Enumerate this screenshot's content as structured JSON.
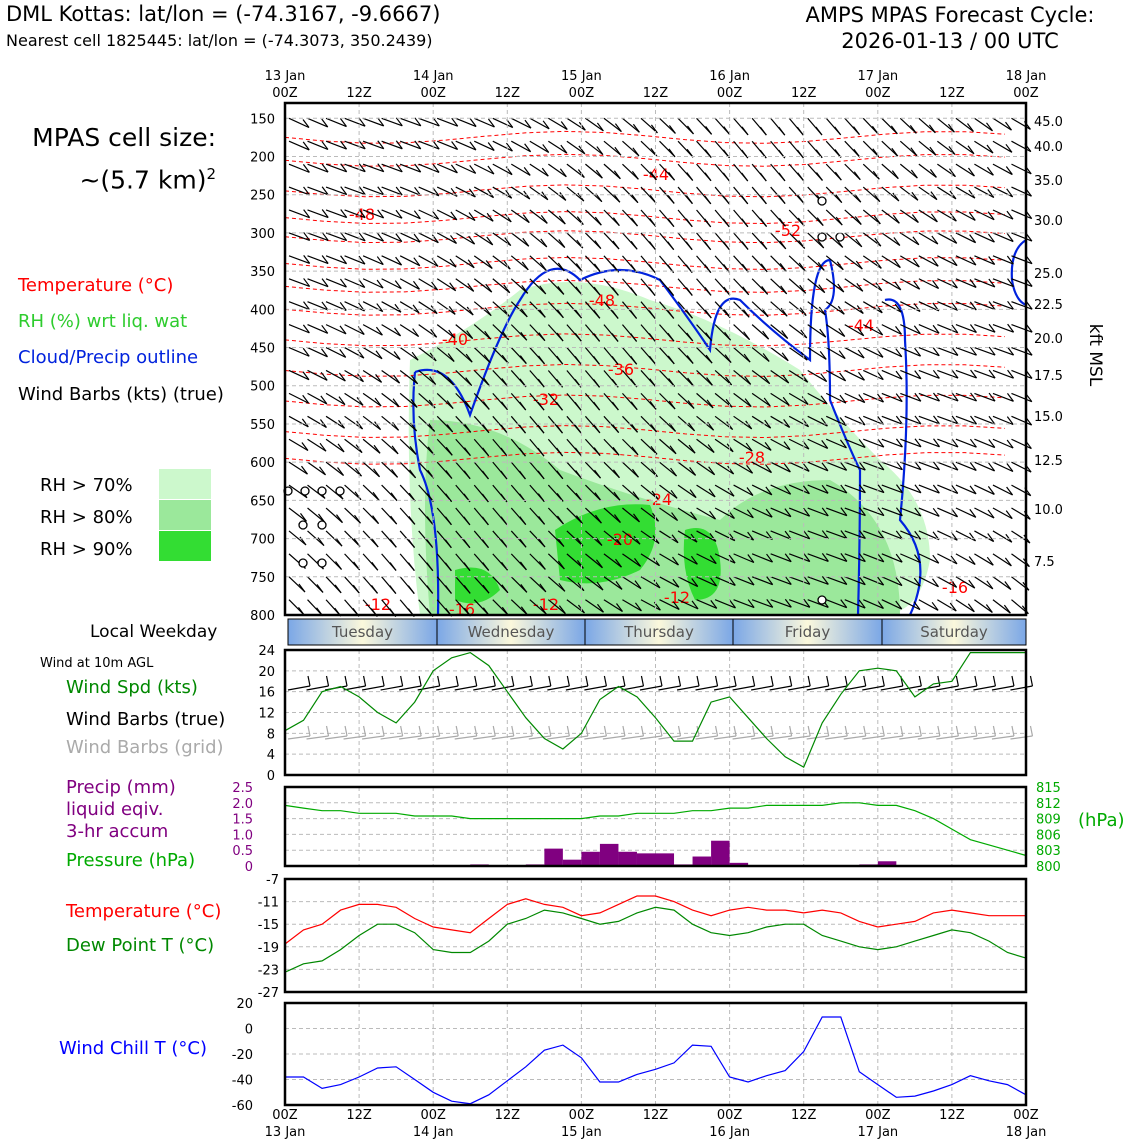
{
  "header": {
    "title_left": "DML Kottas: lat/lon = (-74.3167, -9.6667)",
    "subtitle_left": "Nearest cell 1825445: lat/lon = (-74.3073, 350.2439)",
    "title_right_line1": "AMPS MPAS Forecast Cycle:",
    "title_right_line2": "2026-01-13 / 00 UTC",
    "cell_size_label": "MPAS cell size:",
    "cell_size_value": "~(5.7 km)",
    "cell_size_exp": "2"
  },
  "legend_upper": {
    "temperature": "Temperature (°C)",
    "rh": "RH (%) wrt liq. wat",
    "cloud": "Cloud/Precip outline",
    "wind": "Wind Barbs (kts) (true)",
    "rh70": "RH > 70%",
    "rh80": "RH > 80%",
    "rh90": "RH > 90%"
  },
  "colors": {
    "temperature": "#ff0000",
    "rh_label": "#2ecc2e",
    "cloud": "#0022dd",
    "rh70": "#ccf8cc",
    "rh80": "#9be89b",
    "rh90": "#33dd33",
    "wind_speed": "#008800",
    "wind_grid": "#aaaaaa",
    "precip": "#800080",
    "pressure": "#00aa00",
    "dewpoint": "#008800",
    "wind_chill": "#0000ff"
  },
  "time_axis": {
    "top_ticks": [
      {
        "line1": "13 Jan",
        "line2": "00Z"
      },
      {
        "line1": "",
        "line2": "12Z"
      },
      {
        "line1": "14 Jan",
        "line2": "00Z"
      },
      {
        "line1": "",
        "line2": "12Z"
      },
      {
        "line1": "15 Jan",
        "line2": "00Z"
      },
      {
        "line1": "",
        "line2": "12Z"
      },
      {
        "line1": "16 Jan",
        "line2": "00Z"
      },
      {
        "line1": "",
        "line2": "12Z"
      },
      {
        "line1": "17 Jan",
        "line2": "00Z"
      },
      {
        "line1": "",
        "line2": "12Z"
      },
      {
        "line1": "18 Jan",
        "line2": "00Z"
      }
    ],
    "bottom_ticks": [
      {
        "line1": "00Z",
        "line2": "13 Jan"
      },
      {
        "line1": "12Z",
        "line2": ""
      },
      {
        "line1": "00Z",
        "line2": "14 Jan"
      },
      {
        "line1": "12Z",
        "line2": ""
      },
      {
        "line1": "00Z",
        "line2": "15 Jan"
      },
      {
        "line1": "12Z",
        "line2": ""
      },
      {
        "line1": "00Z",
        "line2": "16 Jan"
      },
      {
        "line1": "12Z",
        "line2": ""
      },
      {
        "line1": "00Z",
        "line2": "17 Jan"
      },
      {
        "line1": "12Z",
        "line2": ""
      },
      {
        "line1": "00Z",
        "line2": "18 Jan"
      }
    ]
  },
  "weekday": {
    "label": "Local Weekday",
    "days": [
      "Tuesday",
      "Wednesday",
      "Thursday",
      "Friday",
      "Saturday"
    ]
  },
  "wind_panel": {
    "title": "Wind at 10m AGL",
    "speed_label": "Wind Spd (kts)",
    "barbs_true_label": "Wind Barbs (true)",
    "barbs_grid_label": "Wind Barbs (grid)"
  },
  "precip_panel": {
    "precip_label_1": "Precip (mm)",
    "precip_label_2": "liquid eqiv.",
    "precip_label_3": "3-hr accum",
    "pressure_label": "Pressure (hPa)",
    "right_unit": "(hPa)"
  },
  "temp_panel": {
    "temp_label": "Temperature (°C)",
    "dew_label": "Dew Point T (°C)"
  },
  "chill_panel": {
    "label": "Wind Chill T (°C)"
  },
  "chart_data": [
    {
      "type": "area",
      "name": "vertical cross-section",
      "x_range_hours": [
        0,
        120
      ],
      "y_axis_pressure_hpa": [
        150,
        200,
        250,
        300,
        350,
        400,
        450,
        500,
        550,
        600,
        650,
        700,
        750,
        800
      ],
      "y_axis_height_kft": [
        "45.0",
        "40.0",
        "35.0",
        "30.0",
        "25.0",
        "22.5",
        "20.0",
        "17.5",
        "15.0",
        "12.5",
        "10.0",
        "7.5"
      ],
      "ylabel_right": "kft MSL",
      "ylim_hpa": [
        130,
        800
      ],
      "temperature_contour_labels": [
        "-44",
        "-48",
        "-52",
        "-48",
        "-44",
        "-40",
        "-36",
        "-32",
        "-28",
        "-24",
        "-20",
        "-16",
        "-12",
        "-16",
        "-12",
        "-12",
        "-16"
      ],
      "calm_wind_symbol": "o"
    },
    {
      "type": "line",
      "name": "wind speed",
      "ylim": [
        0,
        24
      ],
      "yticks": [
        "24",
        "20",
        "16",
        "12",
        "8",
        "4",
        "0"
      ],
      "x_hours": [
        0,
        3,
        6,
        9,
        12,
        15,
        18,
        21,
        24,
        27,
        30,
        33,
        36,
        39,
        42,
        45,
        48,
        51,
        54,
        57,
        60,
        63,
        66,
        69,
        72,
        75,
        78,
        81,
        84,
        87,
        90,
        93,
        96,
        99,
        102,
        105,
        108,
        111,
        114,
        117,
        120
      ],
      "values": [
        8.5,
        10.5,
        16,
        17,
        15,
        12,
        10,
        14,
        20,
        22.5,
        23.5,
        21,
        16,
        11,
        7,
        5,
        8,
        14.5,
        17,
        15,
        11,
        6.5,
        6.5,
        14,
        15,
        11,
        7,
        3.5,
        1.5,
        10,
        15.5,
        20,
        20.5,
        20,
        15,
        17.5,
        18,
        23.5,
        23.5,
        23.5,
        23.5
      ]
    },
    {
      "type": "bar",
      "name": "precip 3-hr accum (mm)",
      "ylim": [
        0,
        2.5
      ],
      "yticks": [
        "2.5",
        "2.0",
        "1.5",
        "1.0",
        "0.5",
        "0"
      ],
      "x_hours": [
        30,
        39,
        42,
        45,
        48,
        51,
        54,
        57,
        60,
        63,
        66,
        69,
        72,
        93,
        96
      ],
      "values": [
        0.05,
        0.05,
        0.55,
        0.2,
        0.45,
        0.7,
        0.45,
        0.4,
        0.4,
        0.05,
        0.3,
        0.8,
        0.1,
        0.05,
        0.15
      ]
    },
    {
      "type": "line",
      "name": "pressure (hPa)",
      "ylim": [
        800,
        815
      ],
      "yticks": [
        "815",
        "812",
        "809",
        "806",
        "803",
        "800"
      ],
      "x_hours": [
        0,
        3,
        6,
        9,
        12,
        15,
        18,
        21,
        24,
        27,
        30,
        33,
        36,
        39,
        42,
        45,
        48,
        51,
        54,
        57,
        60,
        63,
        66,
        69,
        72,
        75,
        78,
        81,
        84,
        87,
        90,
        93,
        96,
        99,
        102,
        105,
        108,
        111,
        114,
        117,
        120
      ],
      "values": [
        811.5,
        811,
        810.5,
        810.5,
        810,
        810,
        810,
        809.5,
        809.5,
        809.5,
        809,
        809,
        809,
        809,
        809,
        809,
        809,
        809.5,
        809.5,
        810,
        810,
        810,
        810.5,
        810.5,
        811,
        811,
        811.5,
        811.5,
        811.5,
        811.5,
        812,
        812,
        811.5,
        811.5,
        810.5,
        809,
        807,
        805,
        804,
        803,
        802
      ]
    },
    {
      "type": "line",
      "name": "temperature and dew point (°C)",
      "ylim": [
        -27,
        -7
      ],
      "yticks": [
        "-7",
        "-11",
        "-15",
        "-19",
        "-23",
        "-27"
      ],
      "x_hours": [
        0,
        3,
        6,
        9,
        12,
        15,
        18,
        21,
        24,
        27,
        30,
        33,
        36,
        39,
        42,
        45,
        48,
        51,
        54,
        57,
        60,
        63,
        66,
        69,
        72,
        75,
        78,
        81,
        84,
        87,
        90,
        93,
        96,
        99,
        102,
        105,
        108,
        111,
        114,
        117,
        120
      ],
      "series": [
        {
          "name": "Temperature (°C)",
          "values": [
            -18.5,
            -16,
            -15,
            -12.5,
            -11.5,
            -11.5,
            -12,
            -14,
            -15.5,
            -16,
            -16.5,
            -14,
            -11.5,
            -10.5,
            -11.5,
            -12,
            -13.5,
            -13,
            -11.5,
            -10,
            -10,
            -11,
            -12.5,
            -13.5,
            -12.5,
            -12,
            -12.5,
            -12.5,
            -13,
            -12.5,
            -13,
            -14.5,
            -15.5,
            -15,
            -14.5,
            -13,
            -12.5,
            -13,
            -13.5,
            -13.5,
            -13.5
          ]
        },
        {
          "name": "Dew Point T (°C)",
          "values": [
            -23.5,
            -22,
            -21.5,
            -19.5,
            -17,
            -15,
            -15,
            -16.5,
            -19.5,
            -20,
            -20,
            -18,
            -15,
            -14,
            -12.5,
            -13,
            -14,
            -15,
            -14.5,
            -13,
            -12,
            -12.5,
            -15,
            -16.5,
            -17,
            -16.5,
            -15.5,
            -15,
            -15,
            -17,
            -18,
            -19,
            -19.5,
            -19,
            -18,
            -17,
            -16,
            -16.5,
            -18,
            -20,
            -21
          ]
        }
      ]
    },
    {
      "type": "line",
      "name": "wind chill (°C)",
      "ylim": [
        -60,
        20
      ],
      "yticks": [
        "20",
        "0",
        "-20",
        "-40",
        "-60"
      ],
      "x_hours": [
        0,
        3,
        6,
        9,
        12,
        15,
        18,
        21,
        24,
        27,
        30,
        33,
        36,
        39,
        42,
        45,
        48,
        51,
        54,
        57,
        60,
        63,
        66,
        69,
        72,
        75,
        78,
        81,
        84,
        87,
        90,
        93,
        96,
        99,
        102,
        105,
        108,
        111,
        114,
        117,
        120
      ],
      "values": [
        -38,
        -38,
        -47,
        -44,
        -38,
        -31,
        -30,
        -40,
        -50,
        -57,
        -59,
        -52,
        -41,
        -30,
        -17,
        -13,
        -23,
        -42,
        -42,
        -36,
        -32,
        -27,
        -13,
        -14,
        -38,
        -42,
        -37,
        -33,
        -18,
        9,
        9,
        -34,
        -44,
        -54,
        -53,
        -49,
        -44,
        -37,
        -41,
        -44,
        -52
      ]
    }
  ]
}
